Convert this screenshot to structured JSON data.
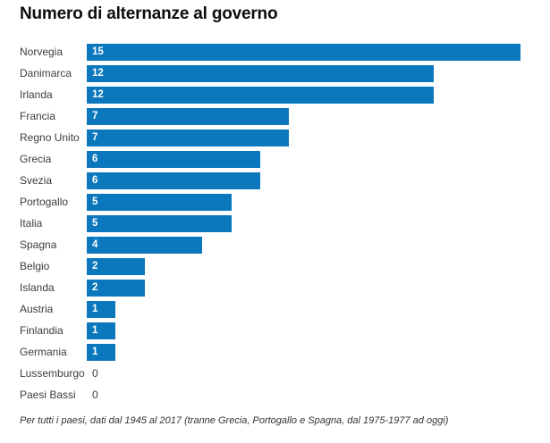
{
  "title": "Numero di alternanze al governo",
  "footnote": "Per tutti i paesi, dati dal 1945 al 2017 (tranne Grecia, Portogallo e Spagna, dal 1975-1977 ad oggi)",
  "colors": {
    "bar": "#0b77bd",
    "title_text": "#0d0d0d",
    "label_text": "#3c3c3c",
    "value_in_bar": "#ffffff",
    "background": "#ffffff"
  },
  "chart_data": {
    "type": "bar",
    "orientation": "horizontal",
    "title": "Numero di alternanze al governo",
    "xlabel": "",
    "ylabel": "",
    "xlim": [
      0,
      15
    ],
    "grid": false,
    "legend": false,
    "value_labels": "inside-left",
    "categories": [
      "Norvegia",
      "Danimarca",
      "Irlanda",
      "Francia",
      "Regno Unito",
      "Grecia",
      "Svezia",
      "Portogallo",
      "Italia",
      "Spagna",
      "Belgio",
      "Islanda",
      "Austria",
      "Finlandia",
      "Germania",
      "Lussemburgo",
      "Paesi Bassi"
    ],
    "values": [
      15,
      12,
      12,
      7,
      7,
      6,
      6,
      5,
      5,
      4,
      2,
      2,
      1,
      1,
      1,
      0,
      0
    ],
    "note": "Per tutti i paesi, dati dal 1945 al 2017 (tranne Grecia, Portogallo e Spagna, dal 1975-1977 ad oggi)"
  }
}
